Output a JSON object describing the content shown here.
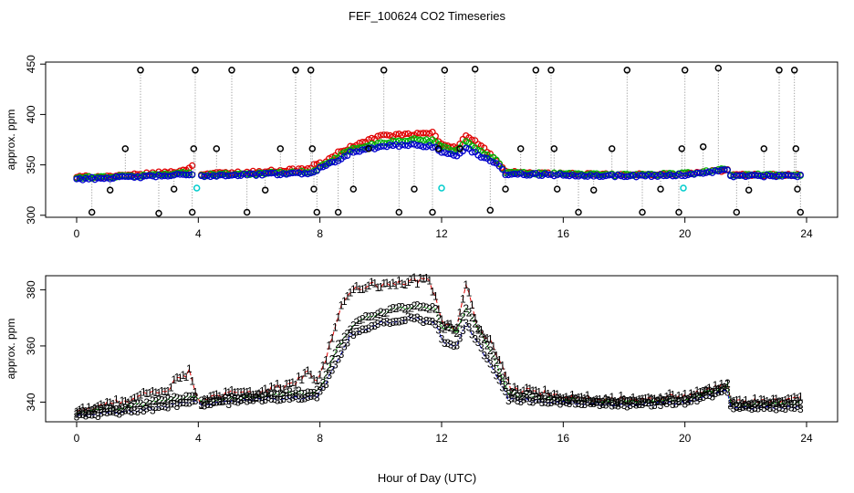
{
  "figure": {
    "title": "FEF_100624  CO2 Timeseries",
    "xlabel": "Hour of Day (UTC)"
  },
  "chart_data": [
    {
      "type": "scatter",
      "title": "FEF_100624  CO2 Timeseries",
      "xlabel": "Hour of Day (UTC)",
      "ylabel": "approx. ppm",
      "xlim": [
        0,
        24
      ],
      "ylim": [
        298,
        452
      ],
      "xticks": [
        0,
        4,
        8,
        12,
        16,
        20,
        24
      ],
      "yticks": [
        300,
        350,
        400,
        450
      ],
      "grid": false,
      "series": [
        {
          "name": "black (spikes)",
          "color": "#000000",
          "marker": "circle",
          "connect": "dotted-vertical",
          "x": [
            0.5,
            1.1,
            1.6,
            2.1,
            2.7,
            3.2,
            3.8,
            3.85,
            3.9,
            4.6,
            5.1,
            5.6,
            6.2,
            6.7,
            7.2,
            7.7,
            7.75,
            7.8,
            7.9,
            8.6,
            9.1,
            9.6,
            10.1,
            10.6,
            11.1,
            11.7,
            11.9,
            12.1,
            12.6,
            13.1,
            13.6,
            14.1,
            14.6,
            15.1,
            15.6,
            15.7,
            15.8,
            16.5,
            17.0,
            17.6,
            18.1,
            18.6,
            19.2,
            19.8,
            19.9,
            20.0,
            20.6,
            21.1,
            21.7,
            22.1,
            22.6,
            23.1,
            23.6,
            23.65,
            23.7,
            23.8
          ],
          "y": [
            303,
            325,
            366,
            444,
            302,
            326,
            303,
            366,
            444,
            366,
            444,
            303,
            325,
            366,
            444,
            444,
            366,
            326,
            303,
            303,
            326,
            366,
            444,
            303,
            326,
            303,
            366,
            444,
            366,
            445,
            305,
            326,
            366,
            444,
            444,
            366,
            326,
            303,
            325,
            366,
            444,
            303,
            326,
            303,
            366,
            444,
            368,
            446,
            303,
            325,
            366,
            444,
            444,
            366,
            326,
            303
          ]
        },
        {
          "name": "cyan",
          "color": "#00cccc",
          "marker": "circle",
          "x": [
            3.95,
            12.0,
            19.95
          ],
          "y": [
            327,
            327,
            327
          ]
        },
        {
          "name": "red (1)",
          "color": "#e00000",
          "marker": "circle",
          "profile": [
            [
              0,
              338
            ],
            [
              1.5,
              339
            ],
            [
              3.5,
              344
            ],
            [
              3.9,
              351
            ],
            [
              4.0,
              341
            ],
            [
              6.0,
              343
            ],
            [
              7.6,
              346
            ],
            [
              7.95,
              352
            ],
            [
              8.1,
              351
            ],
            [
              8.6,
              362
            ],
            [
              9.2,
              370
            ],
            [
              10.0,
              379
            ],
            [
              11.0,
              380
            ],
            [
              11.7,
              382
            ],
            [
              12.0,
              370
            ],
            [
              12.5,
              367
            ],
            [
              12.8,
              380
            ],
            [
              13.3,
              369
            ],
            [
              13.7,
              357
            ],
            [
              14.1,
              343
            ],
            [
              16,
              341
            ],
            [
              18,
              340
            ],
            [
              20,
              341
            ],
            [
              21.4,
              345
            ],
            [
              21.5,
              340
            ],
            [
              23.8,
              340
            ]
          ]
        },
        {
          "name": "green (2)",
          "color": "#00b000",
          "marker": "circle",
          "profile": [
            [
              0,
              337
            ],
            [
              2.0,
              339
            ],
            [
              3.5,
              342
            ],
            [
              4.0,
              340
            ],
            [
              7.8,
              343
            ],
            [
              8.1,
              350
            ],
            [
              8.6,
              358
            ],
            [
              9.0,
              365
            ],
            [
              10.0,
              372
            ],
            [
              11.0,
              375
            ],
            [
              11.8,
              374
            ],
            [
              12.0,
              368
            ],
            [
              12.5,
              364
            ],
            [
              12.8,
              374
            ],
            [
              13.3,
              363
            ],
            [
              13.8,
              355
            ],
            [
              14.1,
              342
            ],
            [
              16,
              341
            ],
            [
              18,
              340
            ],
            [
              20,
              341
            ],
            [
              21.4,
              346
            ],
            [
              21.5,
              340
            ],
            [
              23.8,
              340
            ]
          ]
        },
        {
          "name": "blue (3)",
          "color": "#0000cc",
          "marker": "circle",
          "profile": [
            [
              0,
              336
            ],
            [
              2.0,
              338
            ],
            [
              3.5,
              340
            ],
            [
              4.0,
              339
            ],
            [
              7.8,
              342
            ],
            [
              8.1,
              349
            ],
            [
              8.6,
              355
            ],
            [
              9.0,
              362
            ],
            [
              10.0,
              368
            ],
            [
              11.0,
              370
            ],
            [
              11.8,
              368
            ],
            [
              12.0,
              362
            ],
            [
              12.5,
              359
            ],
            [
              12.8,
              367
            ],
            [
              13.3,
              358
            ],
            [
              13.8,
              352
            ],
            [
              14.1,
              341
            ],
            [
              16,
              340
            ],
            [
              18,
              339
            ],
            [
              20,
              340
            ],
            [
              21.4,
              345
            ],
            [
              21.5,
              339
            ],
            [
              23.8,
              339
            ]
          ]
        }
      ]
    },
    {
      "type": "line",
      "xlabel": "Hour of Day (UTC)",
      "ylabel": "approx. ppm",
      "xlim": [
        0,
        24
      ],
      "ylim": [
        333,
        385
      ],
      "xticks": [
        0,
        4,
        8,
        12,
        16,
        20,
        24
      ],
      "yticks": [
        340,
        360,
        380
      ],
      "grid": false,
      "series": [
        {
          "name": "1",
          "color": "#e00000",
          "marker": "1",
          "profile": [
            [
              0,
              337
            ],
            [
              1.0,
              339
            ],
            [
              2.0,
              342
            ],
            [
              3.0,
              345
            ],
            [
              3.7,
              351
            ],
            [
              3.95,
              343
            ],
            [
              4.1,
              340
            ],
            [
              5.0,
              343
            ],
            [
              6.0,
              344
            ],
            [
              7.0,
              346
            ],
            [
              7.6,
              350
            ],
            [
              7.9,
              348
            ],
            [
              8.1,
              352
            ],
            [
              8.4,
              364
            ],
            [
              8.7,
              374
            ],
            [
              9.2,
              381
            ],
            [
              9.8,
              382
            ],
            [
              10.5,
              382
            ],
            [
              11.0,
              383
            ],
            [
              11.6,
              384
            ],
            [
              12.0,
              369
            ],
            [
              12.5,
              366
            ],
            [
              12.8,
              382
            ],
            [
              13.2,
              366
            ],
            [
              13.7,
              360
            ],
            [
              14.0,
              352
            ],
            [
              14.3,
              344
            ],
            [
              15,
              344
            ],
            [
              16,
              342
            ],
            [
              18,
              341
            ],
            [
              20,
              342
            ],
            [
              21.4,
              346
            ],
            [
              21.5,
              340
            ],
            [
              23.8,
              341
            ]
          ]
        },
        {
          "name": "2",
          "color": "#00b000",
          "marker": "2",
          "profile": [
            [
              0,
              336
            ],
            [
              2.0,
              339
            ],
            [
              3.0,
              341
            ],
            [
              3.9,
              342
            ],
            [
              4.1,
              340
            ],
            [
              6.0,
              342
            ],
            [
              7.9,
              344
            ],
            [
              8.1,
              347
            ],
            [
              8.6,
              360
            ],
            [
              9.2,
              369
            ],
            [
              10.0,
              372
            ],
            [
              11.0,
              374
            ],
            [
              11.8,
              373
            ],
            [
              12.0,
              367
            ],
            [
              12.5,
              365
            ],
            [
              12.8,
              374
            ],
            [
              13.3,
              364
            ],
            [
              13.8,
              354
            ],
            [
              14.2,
              343
            ],
            [
              16,
              341
            ],
            [
              18,
              340
            ],
            [
              20,
              341
            ],
            [
              21.4,
              346
            ],
            [
              21.5,
              339
            ],
            [
              23.8,
              340
            ]
          ]
        },
        {
          "name": "3",
          "color": "#0000cc",
          "marker": "3",
          "profile": [
            [
              0,
              335
            ],
            [
              2.0,
              337
            ],
            [
              3.9,
              340
            ],
            [
              4.1,
              339
            ],
            [
              6.0,
              341
            ],
            [
              7.9,
              342
            ],
            [
              8.1,
              345
            ],
            [
              8.6,
              355
            ],
            [
              9.0,
              364
            ],
            [
              10.0,
              368
            ],
            [
              11.0,
              370
            ],
            [
              11.8,
              368
            ],
            [
              12.0,
              362
            ],
            [
              12.5,
              360
            ],
            [
              12.8,
              368
            ],
            [
              13.3,
              359
            ],
            [
              13.8,
              350
            ],
            [
              14.2,
              341
            ],
            [
              16,
              340
            ],
            [
              18,
              339
            ],
            [
              20,
              340
            ],
            [
              21.4,
              344
            ],
            [
              21.5,
              338
            ],
            [
              23.8,
              338
            ]
          ]
        }
      ]
    }
  ]
}
